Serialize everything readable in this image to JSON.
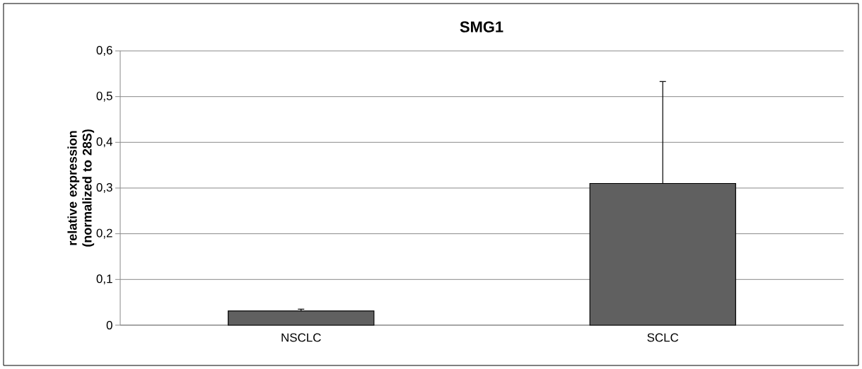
{
  "chart_data": {
    "type": "bar",
    "title": "SMG1",
    "ylabel": "relative expression (normalized to 28S)",
    "categories": [
      "NSCLC",
      "SCLC"
    ],
    "values": [
      0.031,
      0.31
    ],
    "errors": [
      0.004,
      0.223
    ],
    "color": "#606060",
    "ylim": [
      0,
      0.6
    ],
    "yticks": [
      0,
      {
        "value": 0.1,
        "label": "0,1"
      },
      {
        "value": 0.2,
        "label": "0,2"
      },
      {
        "value": 0.3,
        "label": "0,3"
      },
      {
        "value": 0.4,
        "label": "0,4"
      },
      {
        "value": 0.5,
        "label": "0,5"
      },
      {
        "value": 0.6,
        "label": "0,6"
      }
    ],
    "grid": "y"
  }
}
